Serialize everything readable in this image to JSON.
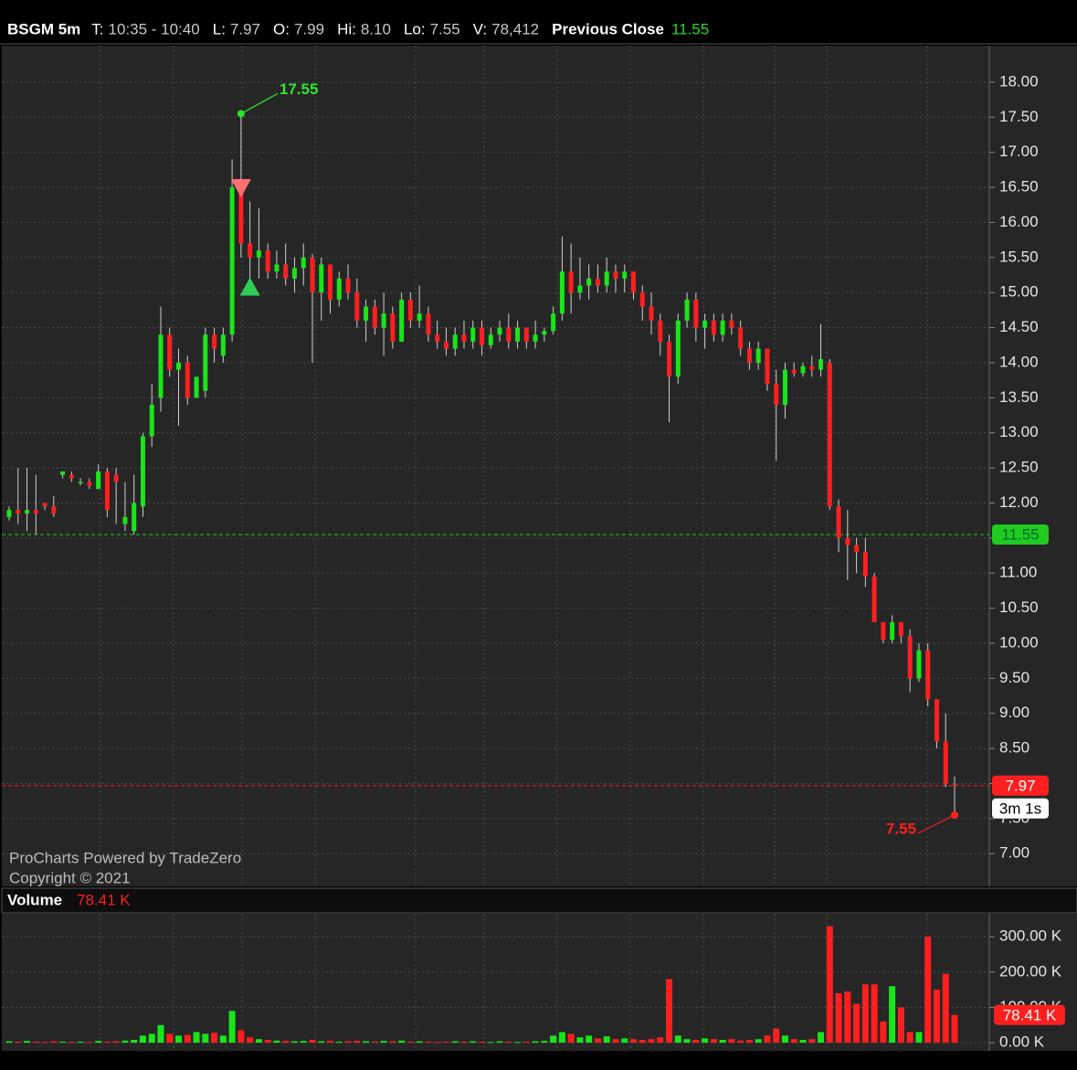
{
  "header": {
    "symbol": "BSGM 5m",
    "fields": [
      {
        "label": "T:",
        "value": "10:35 - 10:40"
      },
      {
        "label": "L:",
        "value": "7.97"
      },
      {
        "label": "O:",
        "value": "7.99"
      },
      {
        "label": "Hi:",
        "value": "8.10"
      },
      {
        "label": "Lo:",
        "value": "7.55"
      },
      {
        "label": "V:",
        "value": "78,412"
      }
    ],
    "previous_close": {
      "label": "Previous Close",
      "value": "11.55"
    }
  },
  "watermark": [
    "ProCharts Powered by TradeZero",
    "Copyright © 2021"
  ],
  "chart_data": [
    {
      "type": "candlestick",
      "up_color": "#19e619",
      "down_color": "#ff1f1f",
      "grid": true,
      "open": [
        11.8,
        11.9,
        11.85,
        11.9,
        12.0,
        11.95,
        12.4,
        12.4,
        12.3,
        12.3,
        12.2,
        12.45,
        12.4,
        11.7,
        11.6,
        11.95,
        12.95,
        13.5,
        14.4,
        13.9,
        14.0,
        13.5,
        13.6,
        14.4,
        14.1,
        14.4,
        16.5,
        15.7,
        15.5,
        15.6,
        15.3,
        15.4,
        15.2,
        15.35,
        15.5,
        15.0,
        15.4,
        14.9,
        15.2,
        15.0,
        14.6,
        14.8,
        14.5,
        14.7,
        14.3,
        14.9,
        14.6,
        14.7,
        14.4,
        14.3,
        14.2,
        14.4,
        14.3,
        14.5,
        14.25,
        14.4,
        14.5,
        14.3,
        14.5,
        14.3,
        14.4,
        14.45,
        14.7,
        15.3,
        15.0,
        15.1,
        15.2,
        15.1,
        15.3,
        15.2,
        15.3,
        15.0,
        14.8,
        14.6,
        14.3,
        13.8,
        14.6,
        14.9,
        14.5,
        14.6,
        14.4,
        14.6,
        14.5,
        14.2,
        14.0,
        14.2,
        13.7,
        13.4,
        13.9,
        13.85,
        13.95,
        13.9,
        14.0,
        11.95,
        11.5,
        11.4,
        11.3,
        10.95,
        10.3,
        10.05,
        10.3,
        10.1,
        9.5,
        9.9,
        9.2,
        8.6,
        7.99
      ],
      "high": [
        11.95,
        12.5,
        12.5,
        12.4,
        12.0,
        12.1,
        12.45,
        12.45,
        12.35,
        12.35,
        12.55,
        12.5,
        12.5,
        12.3,
        12.4,
        13.0,
        13.7,
        14.8,
        14.5,
        14.2,
        14.1,
        13.8,
        14.5,
        14.5,
        14.5,
        16.9,
        17.55,
        16.3,
        16.2,
        15.7,
        15.6,
        15.7,
        15.5,
        15.7,
        15.55,
        15.5,
        15.4,
        15.3,
        15.4,
        15.2,
        14.9,
        14.9,
        15.0,
        14.8,
        15.0,
        15.0,
        15.1,
        14.8,
        14.6,
        14.5,
        14.5,
        14.6,
        14.6,
        14.6,
        14.5,
        14.6,
        14.7,
        14.6,
        14.5,
        14.6,
        14.5,
        14.8,
        15.8,
        15.7,
        15.5,
        15.4,
        15.4,
        15.5,
        15.4,
        15.4,
        15.3,
        15.1,
        15.0,
        14.7,
        14.4,
        14.7,
        15.0,
        15.0,
        14.7,
        14.7,
        14.7,
        14.7,
        14.6,
        14.3,
        14.3,
        14.2,
        13.9,
        14.0,
        14.0,
        14.0,
        14.1,
        14.55,
        14.05,
        12.05,
        11.9,
        11.5,
        11.5,
        11.0,
        10.3,
        10.4,
        10.3,
        10.2,
        10.0,
        10.0,
        9.2,
        9.0,
        8.1
      ],
      "low": [
        11.75,
        11.7,
        11.6,
        11.55,
        11.9,
        11.8,
        12.35,
        12.3,
        12.25,
        12.2,
        12.2,
        11.8,
        11.7,
        11.6,
        11.55,
        11.8,
        12.8,
        13.3,
        13.8,
        13.1,
        13.4,
        13.5,
        13.5,
        14.0,
        14.0,
        14.3,
        15.5,
        15.2,
        15.2,
        15.2,
        15.2,
        15.1,
        15.0,
        15.1,
        14.0,
        14.6,
        14.7,
        14.8,
        14.9,
        14.5,
        14.3,
        14.4,
        14.1,
        14.2,
        14.3,
        14.5,
        14.5,
        14.3,
        14.2,
        14.1,
        14.1,
        14.2,
        14.2,
        14.1,
        14.2,
        14.3,
        14.2,
        14.2,
        14.2,
        14.2,
        14.3,
        14.4,
        14.6,
        14.7,
        14.9,
        14.9,
        15.0,
        15.0,
        15.0,
        15.0,
        14.9,
        14.6,
        14.4,
        14.1,
        13.15,
        13.7,
        14.5,
        14.3,
        14.2,
        14.3,
        14.3,
        14.4,
        14.1,
        13.9,
        13.9,
        13.6,
        12.6,
        13.2,
        13.8,
        13.8,
        13.8,
        13.8,
        11.9,
        11.3,
        10.9,
        11.0,
        10.8,
        10.3,
        10.0,
        10.0,
        10.0,
        9.3,
        9.45,
        9.1,
        8.5,
        7.95,
        7.55
      ],
      "close": [
        11.9,
        11.85,
        11.9,
        11.85,
        11.95,
        11.85,
        12.45,
        12.35,
        12.3,
        12.25,
        12.45,
        11.9,
        12.3,
        11.8,
        12.0,
        12.95,
        13.4,
        14.4,
        13.9,
        14.0,
        13.5,
        13.8,
        14.4,
        14.2,
        14.4,
        16.5,
        15.7,
        15.5,
        15.6,
        15.3,
        15.4,
        15.2,
        15.35,
        15.5,
        15.0,
        15.4,
        14.9,
        15.2,
        15.0,
        14.6,
        14.8,
        14.5,
        14.7,
        14.3,
        14.9,
        14.6,
        14.7,
        14.4,
        14.3,
        14.2,
        14.4,
        14.3,
        14.5,
        14.25,
        14.4,
        14.5,
        14.3,
        14.5,
        14.3,
        14.4,
        14.45,
        14.7,
        15.3,
        15.0,
        15.1,
        15.2,
        15.1,
        15.3,
        15.2,
        15.3,
        15.0,
        14.8,
        14.6,
        14.3,
        13.8,
        14.6,
        14.9,
        14.5,
        14.6,
        14.4,
        14.6,
        14.5,
        14.2,
        14.0,
        14.2,
        13.7,
        13.4,
        13.9,
        13.85,
        13.95,
        13.9,
        14.05,
        11.95,
        11.5,
        11.4,
        11.3,
        10.95,
        10.3,
        10.05,
        10.3,
        10.1,
        9.5,
        9.9,
        9.2,
        8.6,
        8.0,
        7.97
      ],
      "ylim": [
        6.56,
        18.52
      ],
      "yticks": [
        {
          "value": 7,
          "label": "7.00"
        },
        {
          "value": 7.5,
          "label": "7.50"
        },
        {
          "value": 8,
          "label": "8.00"
        },
        {
          "value": 8.5,
          "label": "8.50"
        },
        {
          "value": 9,
          "label": "9.00"
        },
        {
          "value": 9.5,
          "label": "9.50"
        },
        {
          "value": 10,
          "label": "10.00"
        },
        {
          "value": 10.5,
          "label": "10.50"
        },
        {
          "value": 11,
          "label": "11.00"
        },
        {
          "value": 11.5,
          "label": "11.50"
        },
        {
          "value": 12,
          "label": "12.00"
        },
        {
          "value": 12.5,
          "label": "12.50"
        },
        {
          "value": 13,
          "label": "13.00"
        },
        {
          "value": 13.5,
          "label": "13.50"
        },
        {
          "value": 14,
          "label": "14.00"
        },
        {
          "value": 14.5,
          "label": "14.50"
        },
        {
          "value": 15,
          "label": "15.00"
        },
        {
          "value": 15.5,
          "label": "15.50"
        },
        {
          "value": 16,
          "label": "16.00"
        },
        {
          "value": 16.5,
          "label": "16.50"
        },
        {
          "value": 17,
          "label": "17.00"
        },
        {
          "value": 17.5,
          "label": "17.50"
        },
        {
          "value": 18,
          "label": "18.00"
        }
      ],
      "price_lines": [
        {
          "value": 11.55,
          "label": "11.55",
          "color": "#1fcc1f"
        },
        {
          "value": 7.97,
          "label": "7.97",
          "color": "#ff1f1f"
        }
      ],
      "timer": "3m 1s",
      "annotations": [
        {
          "index": 26,
          "value": 17.55,
          "label": "17.55",
          "color": "#2ee62e"
        },
        {
          "index": 106,
          "value": 7.55,
          "label": "7.55",
          "color": "#ff2020"
        }
      ],
      "trades": [
        {
          "index": 26,
          "price": 16.5,
          "side": "sell",
          "color": "#ff6f6f"
        },
        {
          "index": 27,
          "price": 15.1,
          "side": "buy",
          "color": "#2ecc55"
        }
      ]
    },
    {
      "type": "bar",
      "title": "Volume",
      "last_label": "78.41 K",
      "last_color": "#ff1f1f",
      "values": [
        4000,
        3000,
        5000,
        3000,
        2000,
        4000,
        3000,
        2000,
        3000,
        2000,
        5000,
        3000,
        4000,
        6000,
        8000,
        20000,
        25000,
        50000,
        25000,
        20000,
        22000,
        30000,
        25000,
        28000,
        20000,
        90000,
        35000,
        15000,
        10000,
        8000,
        6000,
        5000,
        4000,
        5000,
        8000,
        4000,
        5000,
        3000,
        4000,
        5000,
        4000,
        3000,
        5000,
        4000,
        6000,
        3000,
        4000,
        3000,
        2000,
        3000,
        4000,
        3000,
        4000,
        3000,
        2000,
        4000,
        3000,
        2000,
        3000,
        4000,
        5000,
        20000,
        30000,
        25000,
        15000,
        20000,
        12000,
        18000,
        10000,
        12000,
        10000,
        8000,
        10000,
        15000,
        180000,
        20000,
        10000,
        8000,
        12000,
        10000,
        8000,
        10000,
        6000,
        8000,
        10000,
        20000,
        40000,
        20000,
        10000,
        8000,
        10000,
        30000,
        330000,
        140000,
        145000,
        110000,
        165000,
        165000,
        60000,
        160000,
        100000,
        30000,
        30000,
        300000,
        150000,
        195000,
        78412
      ],
      "ylim": [
        -23000,
        365000
      ],
      "yticks": [
        {
          "value": 0,
          "label": "0.00 K"
        },
        {
          "value": 100000,
          "label": "100.00 K"
        },
        {
          "value": 200000,
          "label": "200.00 K"
        },
        {
          "value": 300000,
          "label": "300.00 K"
        }
      ]
    }
  ]
}
